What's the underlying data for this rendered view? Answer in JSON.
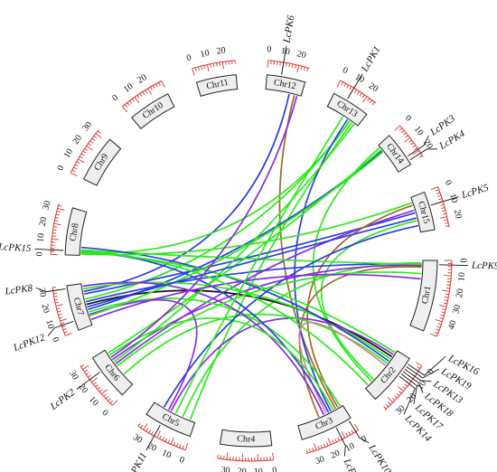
{
  "chromosomes": [
    {
      "name": "Chr1",
      "length": 50,
      "ticks": [
        0,
        10,
        20,
        30,
        40
      ]
    },
    {
      "name": "Chr2",
      "length": 37,
      "ticks": [
        0,
        10,
        20,
        30
      ]
    },
    {
      "name": "Chr3",
      "length": 37,
      "ticks": [
        0,
        10,
        20,
        30
      ]
    },
    {
      "name": "Chr4",
      "length": 36,
      "ticks": [
        0,
        10,
        20,
        30
      ]
    },
    {
      "name": "Chr5",
      "length": 34,
      "ticks": [
        0,
        10,
        20,
        30
      ]
    },
    {
      "name": "Chr6",
      "length": 33,
      "ticks": [
        0,
        10,
        20,
        30
      ]
    },
    {
      "name": "Chr7",
      "length": 32,
      "ticks": [
        0,
        10,
        20,
        30
      ]
    },
    {
      "name": "Chr8",
      "length": 33,
      "ticks": [
        0,
        10,
        20,
        30
      ]
    },
    {
      "name": "Chr9",
      "length": 33,
      "ticks": [
        0,
        10,
        20,
        30
      ]
    },
    {
      "name": "Chr10",
      "length": 30,
      "ticks": [
        0,
        10,
        20
      ]
    },
    {
      "name": "Chr11",
      "length": 28,
      "ticks": [
        0,
        10,
        20
      ]
    },
    {
      "name": "Chr12",
      "length": 27,
      "ticks": [
        0,
        10,
        20
      ]
    },
    {
      "name": "Chr13",
      "length": 27,
      "ticks": [
        0,
        10,
        20
      ]
    },
    {
      "name": "Chr14",
      "length": 25,
      "ticks": [
        0,
        10,
        20
      ]
    },
    {
      "name": "Chr15",
      "length": 27,
      "ticks": [
        0,
        10,
        20
      ]
    }
  ],
  "genes": [
    {
      "name": "LcPK9",
      "chr": "Chr1",
      "pos": 3
    },
    {
      "name": "LcPK16",
      "chr": "Chr2",
      "pos": 4
    },
    {
      "name": "LcPK19",
      "chr": "Chr2",
      "pos": 6
    },
    {
      "name": "LcPK13",
      "chr": "Chr2",
      "pos": 8
    },
    {
      "name": "LcPK18",
      "chr": "Chr2",
      "pos": 10
    },
    {
      "name": "LcPK17",
      "chr": "Chr2",
      "pos": 12
    },
    {
      "name": "LcPK14",
      "chr": "Chr2",
      "pos": 14
    },
    {
      "name": "LcPK10",
      "chr": "Chr3",
      "pos": 2
    },
    {
      "name": "LcPK7",
      "chr": "Chr3",
      "pos": 12
    },
    {
      "name": "LcPK11",
      "chr": "Chr5",
      "pos": 22
    },
    {
      "name": "LcPK2",
      "chr": "Chr6",
      "pos": 22
    },
    {
      "name": "LcPK12",
      "chr": "Chr7",
      "pos": 7
    },
    {
      "name": "LcPK8",
      "chr": "Chr7",
      "pos": 30
    },
    {
      "name": "LcPK15",
      "chr": "Chr8",
      "pos": 3
    },
    {
      "name": "LcPK6",
      "chr": "Chr12",
      "pos": 10
    },
    {
      "name": "LcPK1",
      "chr": "Chr13",
      "pos": 10
    },
    {
      "name": "LcPK3",
      "chr": "Chr14",
      "pos": 19
    },
    {
      "name": "LcPK4",
      "chr": "Chr14",
      "pos": 22
    },
    {
      "name": "LcPK5",
      "chr": "Chr15",
      "pos": 10
    }
  ],
  "link_colors": {
    "blue": "#2b3fe0",
    "green": "#2ee81e",
    "purple": "#8a2be2",
    "brown": "#a06a2a",
    "black": "#111111",
    "pink": "#e07aa0"
  },
  "links": [
    {
      "from": [
        "Chr12",
        18
      ],
      "to": [
        "Chr7",
        26
      ],
      "color": "blue"
    },
    {
      "from": [
        "Chr12",
        22
      ],
      "to": [
        "Chr3",
        6
      ],
      "color": "brown"
    },
    {
      "from": [
        "Chr13",
        20
      ],
      "to": [
        "Chr7",
        20
      ],
      "color": "green"
    },
    {
      "from": [
        "Chr13",
        20
      ],
      "to": [
        "Chr8",
        2
      ],
      "color": "green"
    },
    {
      "from": [
        "Chr13",
        22
      ],
      "to": [
        "Chr5",
        4
      ],
      "color": "green"
    },
    {
      "from": [
        "Chr13",
        18
      ],
      "to": [
        "Chr3",
        10
      ],
      "color": "blue"
    },
    {
      "from": [
        "Chr14",
        5
      ],
      "to": [
        "Chr7",
        12
      ],
      "color": "blue"
    },
    {
      "from": [
        "Chr14",
        4
      ],
      "to": [
        "Chr6",
        30
      ],
      "color": "green"
    },
    {
      "from": [
        "Chr14",
        2
      ],
      "to": [
        "Chr2",
        30
      ],
      "color": "green"
    },
    {
      "from": [
        "Chr15",
        12
      ],
      "to": [
        "Chr7",
        24
      ],
      "color": "blue"
    },
    {
      "from": [
        "Chr15",
        10
      ],
      "to": [
        "Chr6",
        20
      ],
      "color": "purple"
    },
    {
      "from": [
        "Chr15",
        6
      ],
      "to": [
        "Chr3",
        4
      ],
      "color": "brown"
    },
    {
      "from": [
        "Chr15",
        18
      ],
      "to": [
        "Chr2",
        28
      ],
      "color": "green"
    },
    {
      "from": [
        "Chr1",
        3
      ],
      "to": [
        "Chr7",
        18
      ],
      "color": "blue"
    },
    {
      "from": [
        "Chr1",
        3
      ],
      "to": [
        "Chr8",
        4
      ],
      "color": "green"
    },
    {
      "from": [
        "Chr1",
        2
      ],
      "to": [
        "Chr5",
        10
      ],
      "color": "green"
    },
    {
      "from": [
        "Chr1",
        4
      ],
      "to": [
        "Chr6",
        24
      ],
      "color": "purple"
    },
    {
      "from": [
        "Chr1",
        5
      ],
      "to": [
        "Chr3",
        20
      ],
      "color": "brown"
    },
    {
      "from": [
        "Chr2",
        6
      ],
      "to": [
        "Chr7",
        16
      ],
      "color": "black"
    },
    {
      "from": [
        "Chr2",
        8
      ],
      "to": [
        "Chr7",
        28
      ],
      "color": "green"
    },
    {
      "from": [
        "Chr2",
        10
      ],
      "to": [
        "Chr8",
        6
      ],
      "color": "blue"
    },
    {
      "from": [
        "Chr2",
        4
      ],
      "to": [
        "Chr5",
        20
      ],
      "color": "purple"
    },
    {
      "from": [
        "Chr2",
        12
      ],
      "to": [
        "Chr6",
        10
      ],
      "color": "green"
    },
    {
      "from": [
        "Chr2",
        14
      ],
      "to": [
        "Chr3",
        14
      ],
      "color": "pink"
    },
    {
      "from": [
        "Chr2",
        2
      ],
      "to": [
        "Chr8",
        2
      ],
      "color": "green"
    },
    {
      "from": [
        "Chr3",
        2
      ],
      "to": [
        "Chr7",
        10
      ],
      "color": "green"
    },
    {
      "from": [
        "Chr3",
        12
      ],
      "to": [
        "Chr8",
        3
      ],
      "color": "blue"
    },
    {
      "from": [
        "Chr3",
        16
      ],
      "to": [
        "Chr7",
        30
      ],
      "color": "purple"
    },
    {
      "from": [
        "Chr3",
        8
      ],
      "to": [
        "Chr6",
        28
      ],
      "color": "green"
    },
    {
      "from": [
        "Chr5",
        22
      ],
      "to": [
        "Chr7",
        8
      ],
      "color": "purple"
    },
    {
      "from": [
        "Chr5",
        26
      ],
      "to": [
        "Chr15",
        22
      ],
      "color": "blue"
    },
    {
      "from": [
        "Chr6",
        22
      ],
      "to": [
        "Chr13",
        24
      ],
      "color": "green"
    },
    {
      "from": [
        "Chr6",
        18
      ],
      "to": [
        "Chr1",
        10
      ],
      "color": "green"
    },
    {
      "from": [
        "Chr7",
        7
      ],
      "to": [
        "Chr14",
        6
      ],
      "color": "green"
    },
    {
      "from": [
        "Chr7",
        4
      ],
      "to": [
        "Chr1",
        14
      ],
      "color": "purple"
    },
    {
      "from": [
        "Chr8",
        1
      ],
      "to": [
        "Chr15",
        4
      ],
      "color": "green"
    },
    {
      "from": [
        "Chr8",
        3
      ],
      "to": [
        "Chr2",
        34
      ],
      "color": "green"
    },
    {
      "from": [
        "Chr7",
        14
      ],
      "to": [
        "Chr15",
        16
      ],
      "color": "blue"
    },
    {
      "from": [
        "Chr6",
        26
      ],
      "to": [
        "Chr12",
        24
      ],
      "color": "purple"
    },
    {
      "from": [
        "Chr5",
        16
      ],
      "to": [
        "Chr13",
        14
      ],
      "color": "green"
    }
  ]
}
